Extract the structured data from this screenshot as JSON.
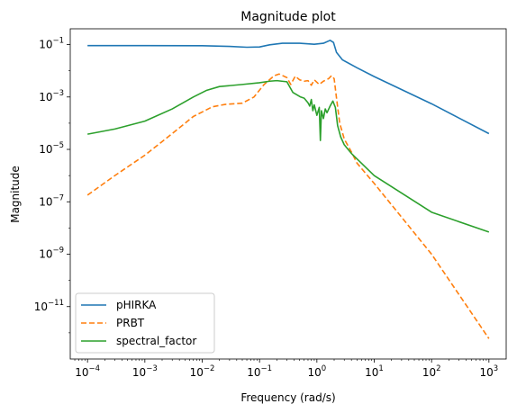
{
  "chart_data": {
    "type": "line",
    "title": "Magnitude plot",
    "xlabel": "Frequency (rad/s)",
    "ylabel": "Magnitude",
    "xscale": "log",
    "yscale": "log",
    "xlim": [
      5e-05,
      2000
    ],
    "ylim": [
      1e-13,
      0.4
    ],
    "xticks": [
      {
        "value": 0.0001,
        "base": "10",
        "exp": "−4"
      },
      {
        "value": 0.001,
        "base": "10",
        "exp": "−3"
      },
      {
        "value": 0.01,
        "base": "10",
        "exp": "−2"
      },
      {
        "value": 0.1,
        "base": "10",
        "exp": "−1"
      },
      {
        "value": 1,
        "base": "10",
        "exp": "0"
      },
      {
        "value": 10,
        "base": "10",
        "exp": "1"
      },
      {
        "value": 100,
        "base": "10",
        "exp": "2"
      },
      {
        "value": 1000,
        "base": "10",
        "exp": "3"
      }
    ],
    "yticks": [
      {
        "value": 1e-11,
        "base": "10",
        "exp": "−11"
      },
      {
        "value": 1e-09,
        "base": "10",
        "exp": "−9"
      },
      {
        "value": 1e-07,
        "base": "10",
        "exp": "−7"
      },
      {
        "value": 1e-05,
        "base": "10",
        "exp": "−5"
      },
      {
        "value": 0.001,
        "base": "10",
        "exp": "−3"
      },
      {
        "value": 0.1,
        "base": "10",
        "exp": "−1"
      }
    ],
    "grid": false,
    "legend_position": "lower-left",
    "series": [
      {
        "name": "pHIRKA",
        "color": "#1f77b4",
        "style": "solid",
        "points": [
          [
            0.0001,
            0.0912
          ],
          [
            0.001,
            0.0912
          ],
          [
            0.01,
            0.0905
          ],
          [
            0.03,
            0.085
          ],
          [
            0.06,
            0.079
          ],
          [
            0.1,
            0.081
          ],
          [
            0.15,
            0.098
          ],
          [
            0.25,
            0.112
          ],
          [
            0.5,
            0.112
          ],
          [
            0.9,
            0.103
          ],
          [
            1.3,
            0.112
          ],
          [
            1.7,
            0.145
          ],
          [
            1.95,
            0.12
          ],
          [
            2.2,
            0.05
          ],
          [
            2.8,
            0.026
          ],
          [
            5,
            0.013
          ],
          [
            10,
            0.006
          ],
          [
            100,
            0.00055
          ],
          [
            1000,
            4e-05
          ]
        ]
      },
      {
        "name": "PRBT",
        "color": "#ff7f0e",
        "style": "dashed",
        "points": [
          [
            0.0001,
            1.8e-07
          ],
          [
            0.0003,
            1e-06
          ],
          [
            0.001,
            6e-06
          ],
          [
            0.003,
            4e-05
          ],
          [
            0.007,
            0.00018
          ],
          [
            0.015,
            0.00042
          ],
          [
            0.025,
            0.00052
          ],
          [
            0.05,
            0.00058
          ],
          [
            0.08,
            0.001
          ],
          [
            0.12,
            0.003
          ],
          [
            0.18,
            0.0065
          ],
          [
            0.22,
            0.0075
          ],
          [
            0.3,
            0.0055
          ],
          [
            0.35,
            0.003
          ],
          [
            0.42,
            0.0062
          ],
          [
            0.5,
            0.0045
          ],
          [
            0.6,
            0.004
          ],
          [
            0.7,
            0.0042
          ],
          [
            0.8,
            0.0028
          ],
          [
            0.9,
            0.0045
          ],
          [
            1.1,
            0.003
          ],
          [
            1.3,
            0.004
          ],
          [
            1.6,
            0.005
          ],
          [
            1.8,
            0.0065
          ],
          [
            2.0,
            0.005
          ],
          [
            2.2,
            0.0009
          ],
          [
            2.5,
            0.0001
          ],
          [
            3,
            2.5e-05
          ],
          [
            4,
            8e-06
          ],
          [
            5,
            3e-06
          ],
          [
            10,
            5e-07
          ],
          [
            100,
            1e-09
          ],
          [
            1000,
            6e-13
          ]
        ]
      },
      {
        "name": "spectral_factor",
        "color": "#2ca02c",
        "style": "solid",
        "points": [
          [
            0.0001,
            3.8e-05
          ],
          [
            0.0003,
            6e-05
          ],
          [
            0.001,
            0.00012
          ],
          [
            0.003,
            0.00035
          ],
          [
            0.007,
            0.001
          ],
          [
            0.012,
            0.0018
          ],
          [
            0.02,
            0.0025
          ],
          [
            0.05,
            0.003
          ],
          [
            0.1,
            0.0035
          ],
          [
            0.15,
            0.004
          ],
          [
            0.2,
            0.0042
          ],
          [
            0.3,
            0.0038
          ],
          [
            0.38,
            0.0015
          ],
          [
            0.45,
            0.0012
          ],
          [
            0.52,
            0.001
          ],
          [
            0.6,
            0.0009
          ],
          [
            0.7,
            0.0006
          ],
          [
            0.75,
            0.00045
          ],
          [
            0.8,
            0.0008
          ],
          [
            0.85,
            0.0003
          ],
          [
            0.9,
            0.0005
          ],
          [
            1.0,
            0.0002
          ],
          [
            1.1,
            0.0004
          ],
          [
            1.15,
            2.2e-05
          ],
          [
            1.2,
            0.0003
          ],
          [
            1.3,
            0.00015
          ],
          [
            1.4,
            0.00035
          ],
          [
            1.5,
            0.00025
          ],
          [
            1.7,
            0.00045
          ],
          [
            1.9,
            0.0007
          ],
          [
            2.1,
            0.0004
          ],
          [
            2.3,
            8e-05
          ],
          [
            2.6,
            3e-05
          ],
          [
            3,
            1.5e-05
          ],
          [
            4,
            7e-06
          ],
          [
            10,
            1e-06
          ],
          [
            100,
            4e-08
          ],
          [
            1000,
            7e-09
          ]
        ]
      }
    ]
  }
}
